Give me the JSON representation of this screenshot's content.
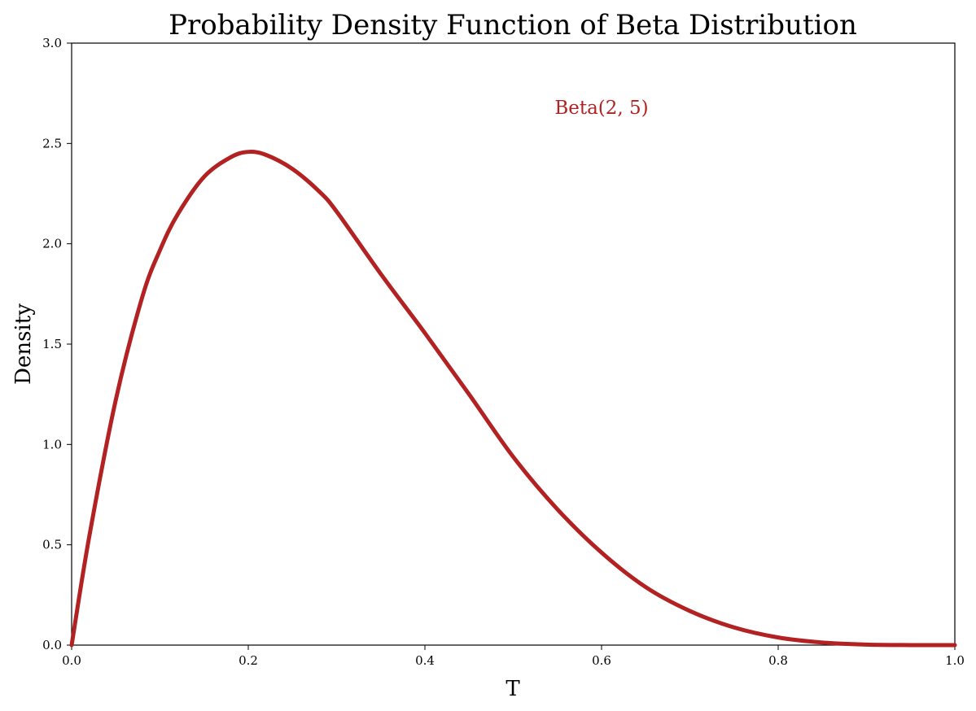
{
  "chart_data": {
    "type": "line",
    "title": "Probability Density Function of Beta Distribution",
    "xlabel": "T",
    "ylabel": "Density",
    "xlim": [
      0.0,
      1.0
    ],
    "ylim": [
      0.0,
      3.0
    ],
    "xticks": [
      "0.0",
      "0.2",
      "0.4",
      "0.6",
      "0.8",
      "1.0"
    ],
    "yticks": [
      "0.0",
      "0.5",
      "1.0",
      "1.5",
      "2.0",
      "2.5",
      "3.0"
    ],
    "grid": false,
    "series": [
      {
        "color": "#b22222",
        "x": [
          0.0,
          0.02,
          0.05,
          0.08,
          0.1,
          0.12,
          0.15,
          0.18,
          0.2,
          0.22,
          0.25,
          0.28,
          0.3,
          0.35,
          0.4,
          0.45,
          0.5,
          0.55,
          0.6,
          0.65,
          0.7,
          0.75,
          0.8,
          0.85,
          0.9,
          0.95,
          1.0
        ],
        "y": [
          0.0,
          0.542,
          1.222,
          1.735,
          1.968,
          2.146,
          2.334,
          2.431,
          2.458,
          2.443,
          2.373,
          2.262,
          2.161,
          1.85,
          1.555,
          1.25,
          0.938,
          0.677,
          0.461,
          0.289,
          0.17,
          0.088,
          0.038,
          0.0129,
          0.00266,
          0.000182,
          0.0
        ]
      }
    ],
    "annotations": [
      {
        "text": "Beta(2, 5)",
        "x": 0.6,
        "y": 2.68,
        "color": "#b22222"
      }
    ]
  }
}
